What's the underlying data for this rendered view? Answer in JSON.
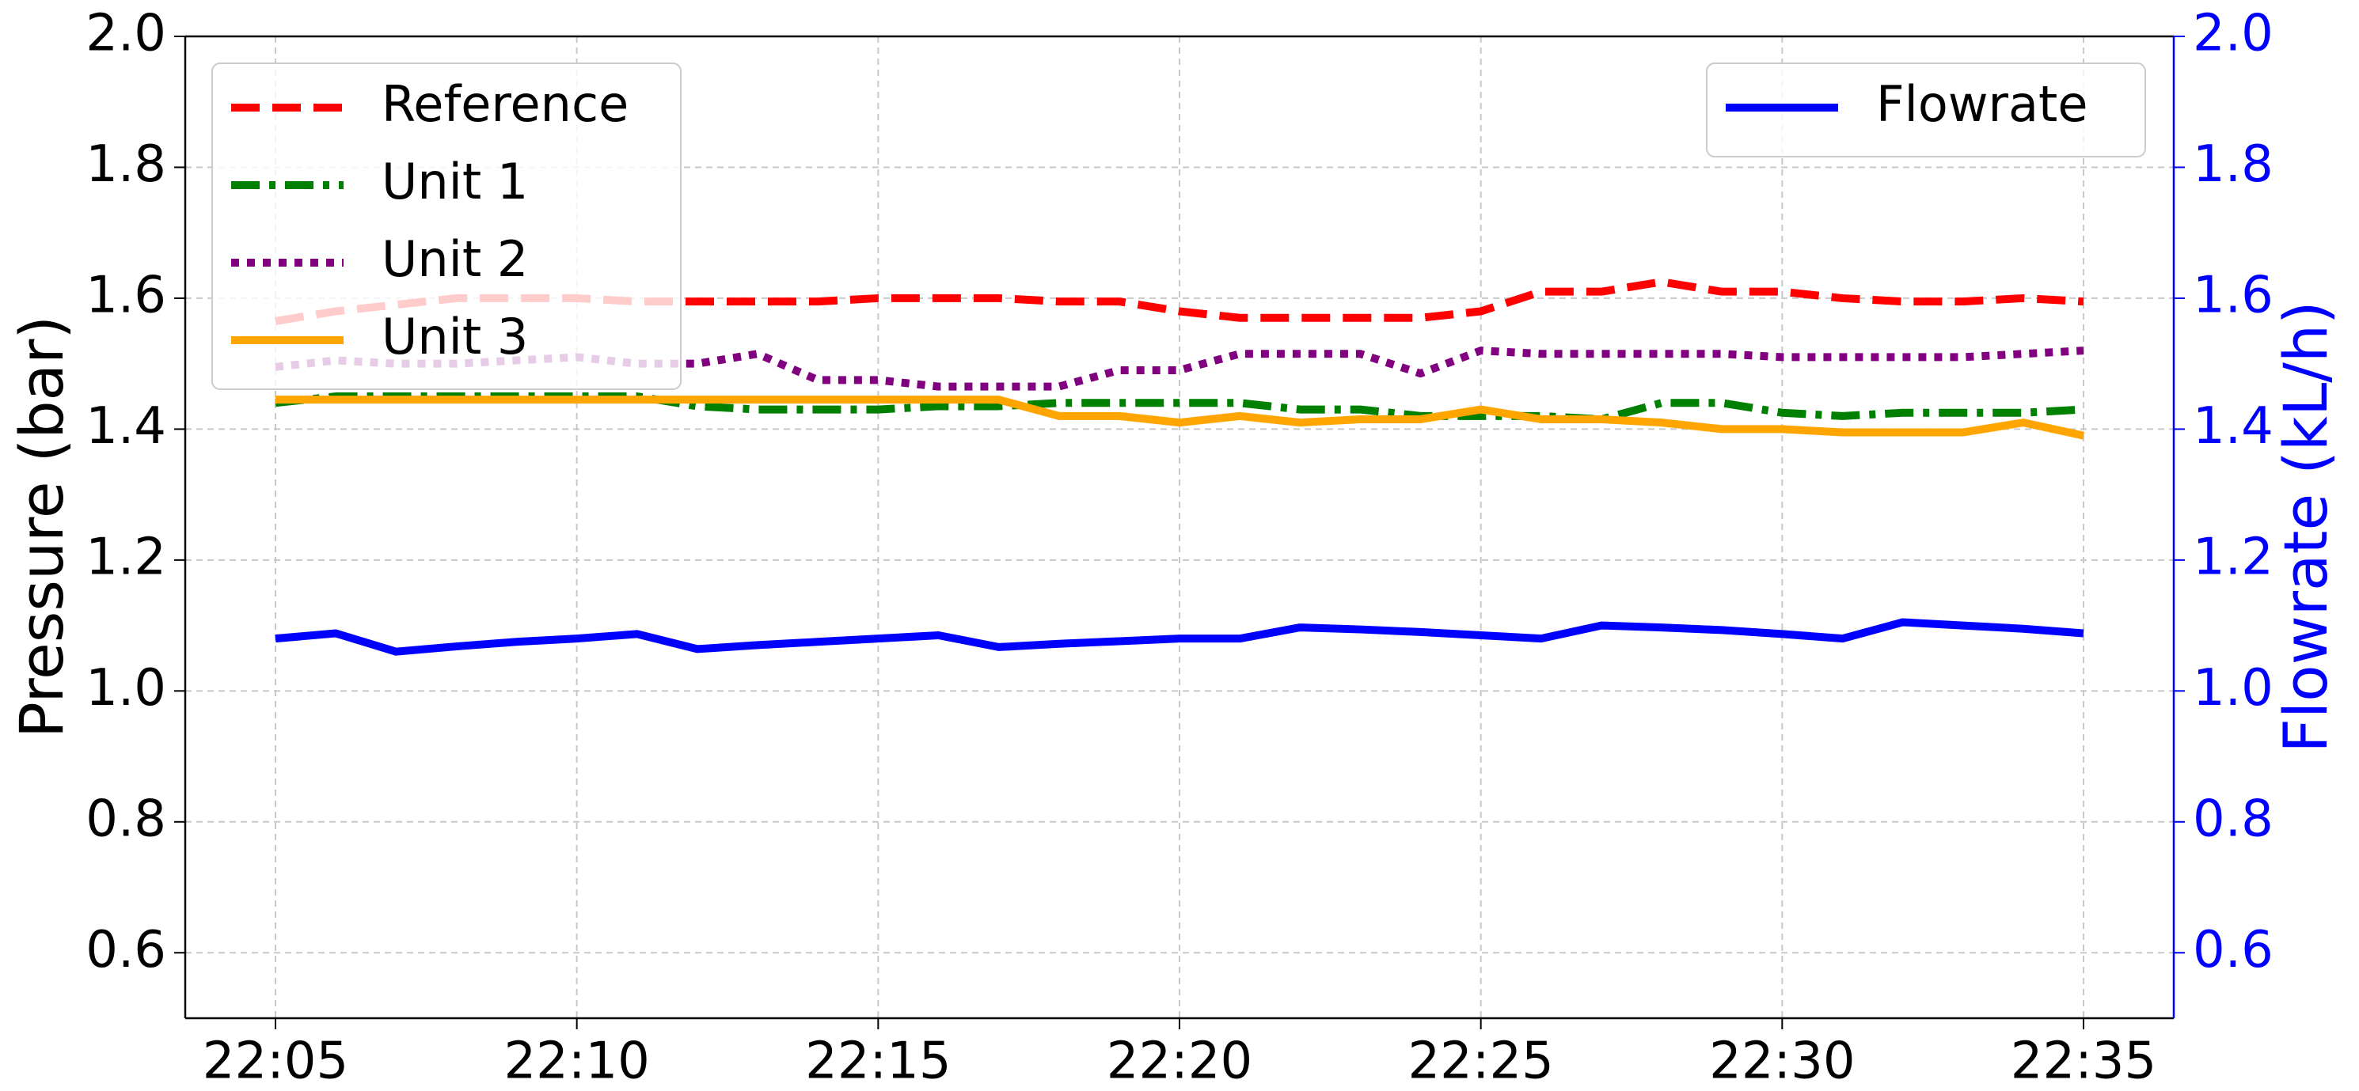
{
  "chart_data": {
    "type": "line",
    "categories": [
      "22:05",
      null,
      null,
      null,
      null,
      "22:10",
      null,
      null,
      null,
      null,
      "22:15",
      null,
      null,
      null,
      null,
      "22:20",
      null,
      null,
      null,
      null,
      "22:25",
      null,
      null,
      null,
      null,
      "22:30",
      null,
      null,
      null,
      null,
      "22:35"
    ],
    "ylabel": "Pressure (bar)",
    "y2label": "Flowrate (kL/h)",
    "y2color": "#0000ff",
    "ylim": [
      0.5,
      2.0
    ],
    "yticks": [
      0.6,
      0.8,
      {
        "value": 1,
        "label": "1.0"
      },
      1.2,
      1.4,
      1.6,
      1.8,
      {
        "value": 2,
        "label": "2.0"
      }
    ],
    "y2lim": [
      0.5,
      2.0
    ],
    "y2ticks": [
      0.6,
      0.8,
      {
        "value": 1,
        "label": "1.0"
      },
      1.2,
      1.4,
      1.6,
      1.8,
      {
        "value": 2,
        "label": "2.0"
      }
    ],
    "grid": true,
    "legend": "upper left",
    "y2legend": "upper right",
    "series": [
      {
        "name": "Reference",
        "color": "#ff0000",
        "linestyle": "dashed",
        "values": [
          1.565,
          1.58,
          1.59,
          1.6,
          1.6,
          1.6,
          1.595,
          1.595,
          1.595,
          1.595,
          1.6,
          1.6,
          1.6,
          1.595,
          1.595,
          1.58,
          1.57,
          1.57,
          1.57,
          1.57,
          1.58,
          1.61,
          1.61,
          1.625,
          1.61,
          1.61,
          1.6,
          1.595,
          1.595,
          1.6,
          1.595
        ]
      },
      {
        "name": "Unit 1",
        "color": "#008000",
        "linestyle": "dashdot",
        "values": [
          1.44,
          1.45,
          1.45,
          1.45,
          1.45,
          1.45,
          1.45,
          1.435,
          1.43,
          1.43,
          1.43,
          1.435,
          1.435,
          1.44,
          1.44,
          1.44,
          1.44,
          1.43,
          1.43,
          1.42,
          1.42,
          1.42,
          1.415,
          1.44,
          1.44,
          1.425,
          1.42,
          1.425,
          1.425,
          1.425,
          1.43
        ]
      },
      {
        "name": "Unit 2",
        "color": "#800080",
        "linestyle": "dotted",
        "values": [
          1.495,
          1.505,
          1.5,
          1.5,
          1.505,
          1.51,
          1.5,
          1.5,
          1.515,
          1.475,
          1.475,
          1.465,
          1.465,
          1.465,
          1.49,
          1.49,
          1.515,
          1.515,
          1.515,
          1.485,
          1.52,
          1.515,
          1.515,
          1.515,
          1.515,
          1.51,
          1.51,
          1.51,
          1.51,
          1.515,
          1.52
        ]
      },
      {
        "name": "Unit 3",
        "color": "#ffa500",
        "linestyle": "solid",
        "values": [
          1.445,
          1.445,
          1.445,
          1.445,
          1.445,
          1.445,
          1.445,
          1.445,
          1.445,
          1.445,
          1.445,
          1.445,
          1.445,
          1.42,
          1.42,
          1.41,
          1.42,
          1.41,
          1.415,
          1.415,
          1.43,
          1.415,
          1.415,
          1.41,
          1.4,
          1.4,
          1.395,
          1.395,
          1.395,
          1.41,
          1.39
        ]
      },
      {
        "name": "Flowrate",
        "color": "#0000ff",
        "linestyle": "solid",
        "axis": "y2",
        "values": [
          1.08,
          1.088,
          1.06,
          1.068,
          1.075,
          1.08,
          1.087,
          1.064,
          1.07,
          1.075,
          1.08,
          1.085,
          1.067,
          1.072,
          1.076,
          1.08,
          1.08,
          1.097,
          1.094,
          1.09,
          1.085,
          1.08,
          1.1,
          1.097,
          1.093,
          1.087,
          1.08,
          1.105,
          1.1,
          1.095,
          1.088
        ]
      }
    ]
  }
}
